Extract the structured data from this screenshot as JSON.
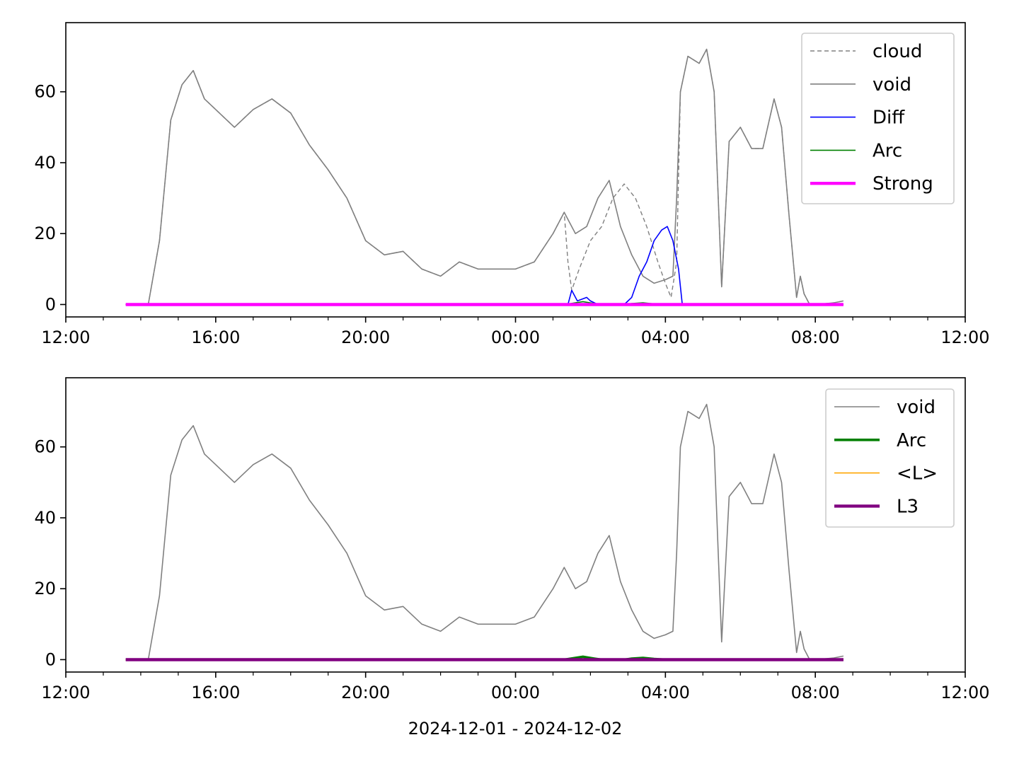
{
  "figure": {
    "xlabel": "2024-12-01 - 2024-12-02"
  },
  "chart_data": [
    {
      "type": "line",
      "xlabel": "",
      "ylabel": "",
      "x_unit": "hours since 2024-12-01 00:00",
      "xlim": [
        12,
        36
      ],
      "ylim": [
        -3.5,
        79.5
      ],
      "xticks": [
        {
          "value": 12,
          "label": "12:00"
        },
        {
          "value": 16,
          "label": "16:00"
        },
        {
          "value": 20,
          "label": "20:00"
        },
        {
          "value": 24,
          "label": "00:00"
        },
        {
          "value": 28,
          "label": "04:00"
        },
        {
          "value": 32,
          "label": "08:00"
        },
        {
          "value": 36,
          "label": "12:00"
        }
      ],
      "minor_xticks": [
        13,
        14,
        15,
        17,
        18,
        19,
        21,
        22,
        23,
        25,
        26,
        27,
        29,
        30,
        31,
        33,
        34,
        35
      ],
      "yticks": [
        {
          "value": 0,
          "label": "0"
        },
        {
          "value": 20,
          "label": "20"
        },
        {
          "value": 40,
          "label": "40"
        },
        {
          "value": 60,
          "label": "60"
        }
      ],
      "legend": "top-right",
      "grid": false,
      "series": [
        {
          "name": "cloud",
          "color": "#808080",
          "dash": true,
          "width": 1.4,
          "points": [
            [
              13.6,
              0
            ],
            [
              14.2,
              0
            ],
            [
              14.5,
              18
            ],
            [
              14.8,
              52
            ],
            [
              15.1,
              62
            ],
            [
              15.4,
              66
            ],
            [
              15.7,
              58
            ],
            [
              16.0,
              55
            ],
            [
              16.5,
              50
            ],
            [
              17.0,
              55
            ],
            [
              17.5,
              58
            ],
            [
              18.0,
              54
            ],
            [
              18.5,
              45
            ],
            [
              19.0,
              38
            ],
            [
              19.5,
              30
            ],
            [
              20.0,
              18
            ],
            [
              20.5,
              14
            ],
            [
              21.0,
              15
            ],
            [
              21.5,
              10
            ],
            [
              22.0,
              8
            ],
            [
              22.5,
              12
            ],
            [
              23.0,
              10
            ],
            [
              23.5,
              10
            ],
            [
              24.0,
              10
            ],
            [
              24.5,
              12
            ],
            [
              25.0,
              20
            ],
            [
              25.3,
              26
            ],
            [
              25.4,
              12
            ],
            [
              25.5,
              4
            ],
            [
              25.7,
              10
            ],
            [
              26.0,
              18
            ],
            [
              26.3,
              22
            ],
            [
              26.6,
              30
            ],
            [
              26.9,
              34
            ],
            [
              27.2,
              30
            ],
            [
              27.5,
              22
            ],
            [
              27.8,
              12
            ],
            [
              28.0,
              6
            ],
            [
              28.15,
              2
            ],
            [
              28.3,
              12
            ],
            [
              28.4,
              60
            ],
            [
              28.6,
              70
            ],
            [
              28.9,
              68
            ],
            [
              29.1,
              72
            ],
            [
              29.3,
              60
            ],
            [
              29.5,
              5
            ],
            [
              29.7,
              46
            ],
            [
              30.0,
              50
            ],
            [
              30.3,
              44
            ],
            [
              30.6,
              44
            ],
            [
              30.9,
              58
            ],
            [
              31.1,
              50
            ],
            [
              31.3,
              25
            ],
            [
              31.5,
              2
            ],
            [
              31.6,
              8
            ],
            [
              31.7,
              3
            ],
            [
              31.85,
              0
            ],
            [
              32.0,
              0
            ],
            [
              32.5,
              0.5
            ],
            [
              32.75,
              1
            ]
          ]
        },
        {
          "name": "void",
          "color": "#808080",
          "dash": false,
          "width": 1.6,
          "points": [
            [
              13.6,
              0
            ],
            [
              14.2,
              0
            ],
            [
              14.5,
              18
            ],
            [
              14.8,
              52
            ],
            [
              15.1,
              62
            ],
            [
              15.4,
              66
            ],
            [
              15.7,
              58
            ],
            [
              16.0,
              55
            ],
            [
              16.5,
              50
            ],
            [
              17.0,
              55
            ],
            [
              17.5,
              58
            ],
            [
              18.0,
              54
            ],
            [
              18.5,
              45
            ],
            [
              19.0,
              38
            ],
            [
              19.5,
              30
            ],
            [
              20.0,
              18
            ],
            [
              20.5,
              14
            ],
            [
              21.0,
              15
            ],
            [
              21.5,
              10
            ],
            [
              22.0,
              8
            ],
            [
              22.5,
              12
            ],
            [
              23.0,
              10
            ],
            [
              23.5,
              10
            ],
            [
              24.0,
              10
            ],
            [
              24.5,
              12
            ],
            [
              25.0,
              20
            ],
            [
              25.3,
              26
            ],
            [
              25.6,
              20
            ],
            [
              25.9,
              22
            ],
            [
              26.2,
              30
            ],
            [
              26.5,
              35
            ],
            [
              26.8,
              22
            ],
            [
              27.1,
              14
            ],
            [
              27.4,
              8
            ],
            [
              27.7,
              6
            ],
            [
              28.0,
              7
            ],
            [
              28.2,
              8
            ],
            [
              28.3,
              30
            ],
            [
              28.4,
              60
            ],
            [
              28.6,
              70
            ],
            [
              28.9,
              68
            ],
            [
              29.1,
              72
            ],
            [
              29.3,
              60
            ],
            [
              29.5,
              5
            ],
            [
              29.7,
              46
            ],
            [
              30.0,
              50
            ],
            [
              30.3,
              44
            ],
            [
              30.6,
              44
            ],
            [
              30.9,
              58
            ],
            [
              31.1,
              50
            ],
            [
              31.3,
              25
            ],
            [
              31.5,
              2
            ],
            [
              31.6,
              8
            ],
            [
              31.7,
              3
            ],
            [
              31.85,
              0
            ],
            [
              32.0,
              0
            ],
            [
              32.5,
              0.5
            ],
            [
              32.75,
              1
            ]
          ]
        },
        {
          "name": "Diff",
          "color": "#0000ff",
          "dash": false,
          "width": 1.6,
          "points": [
            [
              13.6,
              0
            ],
            [
              25.4,
              0
            ],
            [
              25.5,
              4
            ],
            [
              25.65,
              1
            ],
            [
              25.9,
              2
            ],
            [
              26.0,
              1
            ],
            [
              26.2,
              0
            ],
            [
              26.9,
              0
            ],
            [
              27.1,
              2
            ],
            [
              27.3,
              8
            ],
            [
              27.5,
              12
            ],
            [
              27.7,
              18
            ],
            [
              27.9,
              21
            ],
            [
              28.05,
              22
            ],
            [
              28.2,
              18
            ],
            [
              28.35,
              10
            ],
            [
              28.45,
              0
            ],
            [
              32.75,
              0
            ]
          ]
        },
        {
          "name": "Arc",
          "color": "#008000",
          "dash": false,
          "width": 1.6,
          "points": [
            [
              13.6,
              0
            ],
            [
              25.3,
              0
            ],
            [
              25.6,
              0.5
            ],
            [
              25.8,
              0.8
            ],
            [
              26.1,
              0.3
            ],
            [
              26.3,
              0
            ],
            [
              26.9,
              0
            ],
            [
              27.1,
              0.3
            ],
            [
              27.4,
              0.5
            ],
            [
              27.7,
              0.2
            ],
            [
              28.0,
              0
            ],
            [
              32.75,
              0
            ]
          ]
        },
        {
          "name": "Strong",
          "color": "#ff00ff",
          "dash": false,
          "width": 4.4,
          "points": [
            [
              13.6,
              0
            ],
            [
              32.75,
              0
            ]
          ]
        }
      ]
    },
    {
      "type": "line",
      "xlabel": "2024-12-01 - 2024-12-02",
      "ylabel": "",
      "x_unit": "hours since 2024-12-01 00:00",
      "xlim": [
        12,
        36
      ],
      "ylim": [
        -3.5,
        79.5
      ],
      "xticks": [
        {
          "value": 12,
          "label": "12:00"
        },
        {
          "value": 16,
          "label": "16:00"
        },
        {
          "value": 20,
          "label": "20:00"
        },
        {
          "value": 24,
          "label": "00:00"
        },
        {
          "value": 28,
          "label": "04:00"
        },
        {
          "value": 32,
          "label": "08:00"
        },
        {
          "value": 36,
          "label": "12:00"
        }
      ],
      "minor_xticks": [
        13,
        14,
        15,
        17,
        18,
        19,
        21,
        22,
        23,
        25,
        26,
        27,
        29,
        30,
        31,
        33,
        34,
        35
      ],
      "yticks": [
        {
          "value": 0,
          "label": "0"
        },
        {
          "value": 20,
          "label": "20"
        },
        {
          "value": 40,
          "label": "40"
        },
        {
          "value": 60,
          "label": "60"
        }
      ],
      "legend": "top-right",
      "grid": false,
      "series": [
        {
          "name": "void",
          "color": "#808080",
          "dash": false,
          "width": 1.6,
          "points": [
            [
              13.6,
              0
            ],
            [
              14.2,
              0
            ],
            [
              14.5,
              18
            ],
            [
              14.8,
              52
            ],
            [
              15.1,
              62
            ],
            [
              15.4,
              66
            ],
            [
              15.7,
              58
            ],
            [
              16.0,
              55
            ],
            [
              16.5,
              50
            ],
            [
              17.0,
              55
            ],
            [
              17.5,
              58
            ],
            [
              18.0,
              54
            ],
            [
              18.5,
              45
            ],
            [
              19.0,
              38
            ],
            [
              19.5,
              30
            ],
            [
              20.0,
              18
            ],
            [
              20.5,
              14
            ],
            [
              21.0,
              15
            ],
            [
              21.5,
              10
            ],
            [
              22.0,
              8
            ],
            [
              22.5,
              12
            ],
            [
              23.0,
              10
            ],
            [
              23.5,
              10
            ],
            [
              24.0,
              10
            ],
            [
              24.5,
              12
            ],
            [
              25.0,
              20
            ],
            [
              25.3,
              26
            ],
            [
              25.6,
              20
            ],
            [
              25.9,
              22
            ],
            [
              26.2,
              30
            ],
            [
              26.5,
              35
            ],
            [
              26.8,
              22
            ],
            [
              27.1,
              14
            ],
            [
              27.4,
              8
            ],
            [
              27.7,
              6
            ],
            [
              28.0,
              7
            ],
            [
              28.2,
              8
            ],
            [
              28.3,
              30
            ],
            [
              28.4,
              60
            ],
            [
              28.6,
              70
            ],
            [
              28.9,
              68
            ],
            [
              29.1,
              72
            ],
            [
              29.3,
              60
            ],
            [
              29.5,
              5
            ],
            [
              29.7,
              46
            ],
            [
              30.0,
              50
            ],
            [
              30.3,
              44
            ],
            [
              30.6,
              44
            ],
            [
              30.9,
              58
            ],
            [
              31.1,
              50
            ],
            [
              31.3,
              25
            ],
            [
              31.5,
              2
            ],
            [
              31.6,
              8
            ],
            [
              31.7,
              3
            ],
            [
              31.85,
              0
            ],
            [
              32.0,
              0
            ],
            [
              32.5,
              0.5
            ],
            [
              32.75,
              1
            ]
          ]
        },
        {
          "name": "Arc",
          "color": "#008000",
          "dash": false,
          "width": 3.6,
          "points": [
            [
              13.6,
              0
            ],
            [
              25.3,
              0
            ],
            [
              25.6,
              0.5
            ],
            [
              25.8,
              0.8
            ],
            [
              26.1,
              0.3
            ],
            [
              26.3,
              0
            ],
            [
              26.9,
              0
            ],
            [
              27.1,
              0.3
            ],
            [
              27.4,
              0.5
            ],
            [
              27.7,
              0.2
            ],
            [
              28.0,
              0
            ],
            [
              32.75,
              0
            ]
          ]
        },
        {
          "name": "<L>",
          "color": "#ffa500",
          "dash": false,
          "width": 1.6,
          "points": [
            [
              13.6,
              0
            ],
            [
              32.75,
              0
            ]
          ]
        },
        {
          "name": "L3",
          "color": "#800080",
          "dash": false,
          "width": 4.4,
          "points": [
            [
              13.6,
              0
            ],
            [
              32.75,
              0
            ]
          ]
        }
      ]
    }
  ]
}
